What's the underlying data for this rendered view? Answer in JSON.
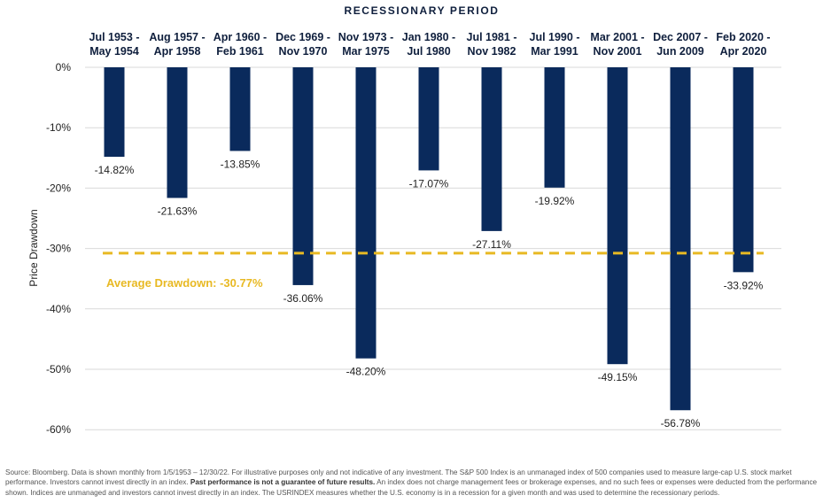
{
  "chart_data": {
    "type": "bar",
    "title": "RECESSIONARY PERIOD",
    "xlabel": "",
    "ylabel": "Price Drawdown",
    "ylim": [
      -60,
      0
    ],
    "yticks": [
      "0%",
      "-10%",
      "-20%",
      "-30%",
      "-40%",
      "-50%",
      "-60%"
    ],
    "categories": [
      [
        "Jul 1953 -",
        "May 1954"
      ],
      [
        "Aug 1957 -",
        "Apr 1958"
      ],
      [
        "Apr 1960 -",
        "Feb 1961"
      ],
      [
        "Dec 1969 -",
        "Nov 1970"
      ],
      [
        "Nov 1973 -",
        "Mar 1975"
      ],
      [
        "Jan 1980 -",
        "Jul 1980"
      ],
      [
        "Jul 1981 -",
        "Nov 1982"
      ],
      [
        "Jul 1990 -",
        "Mar 1991"
      ],
      [
        "Mar 2001 -",
        "Nov 2001"
      ],
      [
        "Dec 2007 -",
        "Jun 2009"
      ],
      [
        "Feb 2020 -",
        "Apr 2020"
      ]
    ],
    "values": [
      -14.82,
      -21.63,
      -13.85,
      -36.06,
      -48.2,
      -17.07,
      -27.11,
      -19.92,
      -49.15,
      -56.78,
      -33.92
    ],
    "data_labels": [
      "-14.82%",
      "-21.63%",
      "-13.85%",
      "-36.06%",
      "-48.20%",
      "-17.07%",
      "-27.11%",
      "-19.92%",
      "-49.15%",
      "-56.78%",
      "-33.92%"
    ],
    "average": {
      "value": -30.77,
      "label": "Average Drawdown: -30.77%"
    },
    "grid": true,
    "colors": {
      "bar": "#0a2a5c",
      "average_line": "#e8b923",
      "grid": "#d9d9d9"
    }
  },
  "footnote": {
    "part1": "Source: Bloomberg. Data is shown monthly from 1/5/1953 – 12/30/22. For illustrative purposes only and not indicative of any investment. The S&P 500 Index is an unmanaged index of 500 companies used to measure large-cap U.S. stock market performance. Investors cannot invest directly in an index. ",
    "bold": "Past performance is not a guarantee of future results.",
    "part2": " An index does not charge management fees or brokerage expenses, and no such fees or expenses were deducted from the performance shown. Indices are unmanaged and investors cannot invest directly in an index. The USRINDEX measures whether the U.S. economy is in a recession for a given month and was used to determine the recessionary periods."
  }
}
